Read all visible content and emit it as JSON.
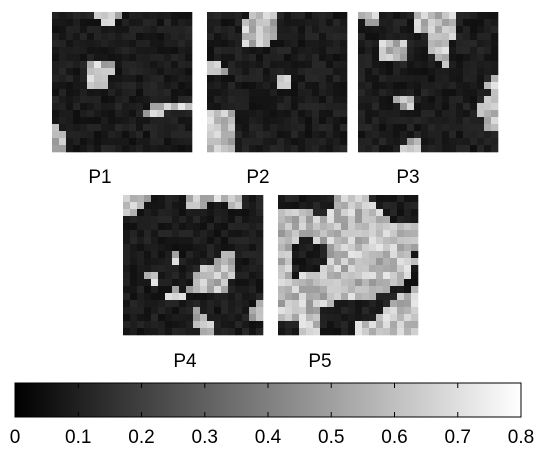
{
  "panels": [
    {
      "label": "P1"
    },
    {
      "label": "P2"
    },
    {
      "label": "P3"
    },
    {
      "label": "P4"
    },
    {
      "label": "P5"
    }
  ],
  "colorbar": {
    "range": [
      0,
      0.8
    ],
    "ticks": [
      0,
      0.1,
      0.2,
      0.3,
      0.4,
      0.5,
      0.6,
      0.7,
      0.8
    ]
  }
}
